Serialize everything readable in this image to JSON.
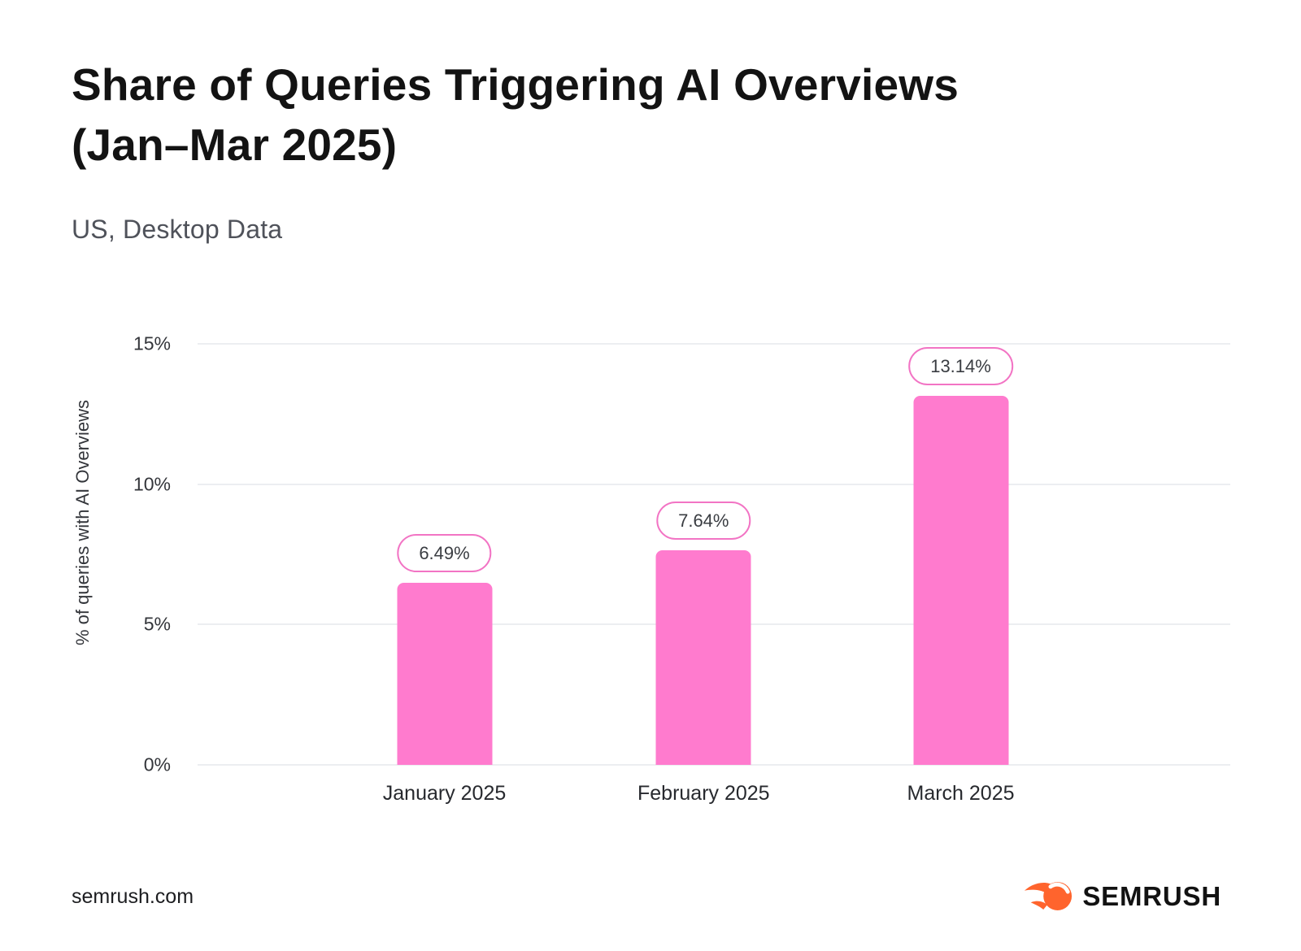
{
  "header": {
    "title": "Share of Queries Triggering AI Overviews\n(Jan–Mar 2025)",
    "subtitle": "US, Desktop Data"
  },
  "chart_data": {
    "type": "bar",
    "title": "Share of Queries Triggering AI Overviews (Jan–Mar 2025)",
    "subtitle": "US, Desktop Data",
    "categories": [
      "January 2025",
      "February 2025",
      "March 2025"
    ],
    "values": [
      6.49,
      7.64,
      13.14
    ],
    "data_labels": [
      "6.49%",
      "7.64%",
      "13.14%"
    ],
    "xlabel": "",
    "ylabel": "% of queries with AI Overviews",
    "ylim": [
      0,
      15
    ],
    "yticks": [
      {
        "value": 15,
        "label": "15%"
      },
      {
        "value": 10,
        "label": "10%"
      },
      {
        "value": 5,
        "label": "5%"
      },
      {
        "value": 0,
        "label": "0%"
      }
    ],
    "grid": "horizontal",
    "legend": "none",
    "bar_color": "#FF7BCE",
    "label_pill_border_color": "#F274C4",
    "label_pill_text_color": "#3A3D42"
  },
  "footer": {
    "source": "semrush.com",
    "logo_text": "SEMRUSH",
    "logo_icon": "semrush-flame-icon",
    "logo_icon_color": "#FF642D"
  }
}
